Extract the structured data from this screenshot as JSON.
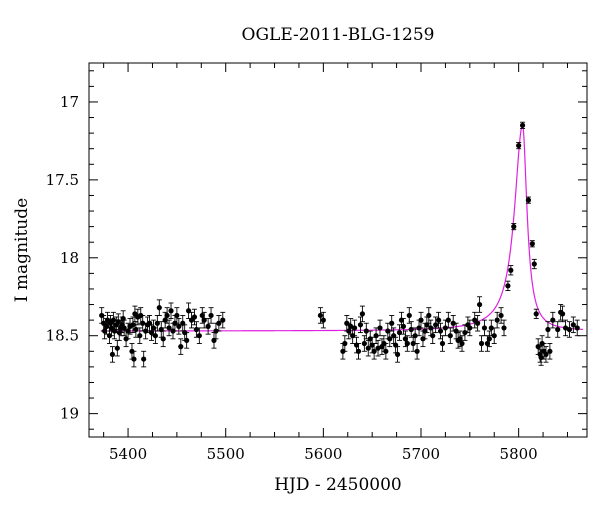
{
  "chart_data": {
    "type": "scatter",
    "title": "OGLE-2011-BLG-1259",
    "xlabel": "HJD - 2450000",
    "ylabel": "I magnitude",
    "xlim": [
      5360,
      5870
    ],
    "ylim": [
      19.15,
      16.75
    ],
    "y_inverted": true,
    "grid": false,
    "x_ticks": [
      5400,
      5500,
      5600,
      5700,
      5800
    ],
    "y_ticks": [
      17,
      17.5,
      18,
      18.5,
      19
    ],
    "y_tick_labels": [
      "17",
      "17.5",
      "18",
      "18.5",
      "19"
    ],
    "colors": {
      "points": "#000000",
      "model": "#e020e0"
    },
    "series": [
      {
        "kind": "points-with-errorbars",
        "points": [
          [
            5373,
            18.37,
            0.05
          ],
          [
            5375,
            18.42,
            0.05
          ],
          [
            5376,
            18.47,
            0.05
          ],
          [
            5378,
            18.44,
            0.05
          ],
          [
            5379,
            18.4,
            0.05
          ],
          [
            5381,
            18.5,
            0.05
          ],
          [
            5382,
            18.42,
            0.05
          ],
          [
            5383,
            18.45,
            0.05
          ],
          [
            5384,
            18.62,
            0.05
          ],
          [
            5385,
            18.4,
            0.05
          ],
          [
            5386,
            18.47,
            0.05
          ],
          [
            5388,
            18.43,
            0.05
          ],
          [
            5389,
            18.58,
            0.05
          ],
          [
            5390,
            18.41,
            0.05
          ],
          [
            5391,
            18.48,
            0.05
          ],
          [
            5393,
            18.45,
            0.05
          ],
          [
            5394,
            18.43,
            0.05
          ],
          [
            5395,
            18.39,
            0.05
          ],
          [
            5396,
            18.45,
            0.05
          ],
          [
            5398,
            18.52,
            0.05
          ],
          [
            5400,
            18.47,
            0.05
          ],
          [
            5402,
            18.44,
            0.05
          ],
          [
            5404,
            18.6,
            0.05
          ],
          [
            5405,
            18.43,
            0.05
          ],
          [
            5406,
            18.65,
            0.05
          ],
          [
            5407,
            18.36,
            0.05
          ],
          [
            5408,
            18.46,
            0.05
          ],
          [
            5410,
            18.38,
            0.05
          ],
          [
            5412,
            18.5,
            0.05
          ],
          [
            5413,
            18.37,
            0.05
          ],
          [
            5415,
            18.42,
            0.05
          ],
          [
            5416,
            18.65,
            0.05
          ],
          [
            5418,
            18.47,
            0.05
          ],
          [
            5420,
            18.43,
            0.05
          ],
          [
            5422,
            18.42,
            0.05
          ],
          [
            5424,
            18.48,
            0.05
          ],
          [
            5426,
            18.45,
            0.05
          ],
          [
            5428,
            18.5,
            0.05
          ],
          [
            5430,
            18.42,
            0.05
          ],
          [
            5432,
            18.32,
            0.05
          ],
          [
            5434,
            18.46,
            0.05
          ],
          [
            5436,
            18.52,
            0.05
          ],
          [
            5438,
            18.4,
            0.05
          ],
          [
            5440,
            18.37,
            0.05
          ],
          [
            5442,
            18.45,
            0.05
          ],
          [
            5444,
            18.34,
            0.05
          ],
          [
            5446,
            18.47,
            0.05
          ],
          [
            5448,
            18.42,
            0.05
          ],
          [
            5450,
            18.37,
            0.05
          ],
          [
            5452,
            18.44,
            0.05
          ],
          [
            5454,
            18.57,
            0.05
          ],
          [
            5456,
            18.42,
            0.05
          ],
          [
            5458,
            18.48,
            0.05
          ],
          [
            5460,
            18.53,
            0.05
          ],
          [
            5462,
            18.34,
            0.05
          ],
          [
            5465,
            18.4,
            0.05
          ],
          [
            5468,
            18.38,
            0.05
          ],
          [
            5470,
            18.46,
            0.05
          ],
          [
            5473,
            18.5,
            0.05
          ],
          [
            5476,
            18.37,
            0.05
          ],
          [
            5478,
            18.4,
            0.05
          ],
          [
            5482,
            18.44,
            0.05
          ],
          [
            5485,
            18.37,
            0.05
          ],
          [
            5488,
            18.53,
            0.05
          ],
          [
            5490,
            18.47,
            0.05
          ],
          [
            5493,
            18.42,
            0.05
          ],
          [
            5497,
            18.4,
            0.05
          ],
          [
            5597,
            18.37,
            0.05
          ],
          [
            5600,
            18.4,
            0.05
          ],
          [
            5620,
            18.6,
            0.05
          ],
          [
            5622,
            18.55,
            0.05
          ],
          [
            5624,
            18.42,
            0.05
          ],
          [
            5626,
            18.47,
            0.05
          ],
          [
            5628,
            18.44,
            0.05
          ],
          [
            5630,
            18.5,
            0.05
          ],
          [
            5632,
            18.45,
            0.05
          ],
          [
            5634,
            18.56,
            0.05
          ],
          [
            5636,
            18.6,
            0.05
          ],
          [
            5638,
            18.43,
            0.05
          ],
          [
            5640,
            18.36,
            0.05
          ],
          [
            5642,
            18.55,
            0.05
          ],
          [
            5644,
            18.47,
            0.05
          ],
          [
            5646,
            18.58,
            0.05
          ],
          [
            5648,
            18.52,
            0.05
          ],
          [
            5650,
            18.56,
            0.05
          ],
          [
            5652,
            18.6,
            0.05
          ],
          [
            5654,
            18.5,
            0.05
          ],
          [
            5656,
            18.58,
            0.05
          ],
          [
            5658,
            18.45,
            0.05
          ],
          [
            5660,
            18.57,
            0.05
          ],
          [
            5662,
            18.55,
            0.05
          ],
          [
            5664,
            18.6,
            0.05
          ],
          [
            5666,
            18.47,
            0.05
          ],
          [
            5668,
            18.52,
            0.05
          ],
          [
            5670,
            18.42,
            0.05
          ],
          [
            5672,
            18.5,
            0.05
          ],
          [
            5674,
            18.56,
            0.05
          ],
          [
            5676,
            18.62,
            0.05
          ],
          [
            5678,
            18.48,
            0.05
          ],
          [
            5680,
            18.4,
            0.05
          ],
          [
            5682,
            18.44,
            0.05
          ],
          [
            5684,
            18.52,
            0.05
          ],
          [
            5686,
            18.55,
            0.05
          ],
          [
            5688,
            18.37,
            0.05
          ],
          [
            5690,
            18.46,
            0.05
          ],
          [
            5692,
            18.55,
            0.05
          ],
          [
            5694,
            18.5,
            0.05
          ],
          [
            5696,
            18.6,
            0.05
          ],
          [
            5698,
            18.45,
            0.05
          ],
          [
            5700,
            18.4,
            0.05
          ],
          [
            5702,
            18.52,
            0.05
          ],
          [
            5704,
            18.47,
            0.05
          ],
          [
            5706,
            18.43,
            0.05
          ],
          [
            5708,
            18.37,
            0.05
          ],
          [
            5710,
            18.45,
            0.05
          ],
          [
            5712,
            18.5,
            0.05
          ],
          [
            5715,
            18.43,
            0.05
          ],
          [
            5718,
            18.4,
            0.05
          ],
          [
            5720,
            18.47,
            0.05
          ],
          [
            5722,
            18.55,
            0.05
          ],
          [
            5725,
            18.45,
            0.05
          ],
          [
            5728,
            18.4,
            0.05
          ],
          [
            5730,
            18.5,
            0.05
          ],
          [
            5733,
            18.42,
            0.05
          ],
          [
            5736,
            18.47,
            0.05
          ],
          [
            5738,
            18.53,
            0.05
          ],
          [
            5740,
            18.52,
            0.05
          ],
          [
            5742,
            18.55,
            0.05
          ],
          [
            5745,
            18.48,
            0.05
          ],
          [
            5748,
            18.43,
            0.05
          ],
          [
            5750,
            18.45,
            0.05
          ],
          [
            5755,
            18.4,
            0.05
          ],
          [
            5758,
            18.42,
            0.05
          ],
          [
            5760,
            18.3,
            0.05
          ],
          [
            5762,
            18.55,
            0.05
          ],
          [
            5765,
            18.45,
            0.05
          ],
          [
            5768,
            18.55,
            0.05
          ],
          [
            5770,
            18.52,
            0.05
          ],
          [
            5772,
            18.45,
            0.05
          ],
          [
            5775,
            18.5,
            0.05
          ],
          [
            5778,
            18.4,
            0.05
          ],
          [
            5782,
            18.37,
            0.05
          ],
          [
            5785,
            18.45,
            0.05
          ],
          [
            5789,
            18.18,
            0.03
          ],
          [
            5792,
            18.08,
            0.03
          ],
          [
            5795,
            17.8,
            0.02
          ],
          [
            5800,
            17.28,
            0.02
          ],
          [
            5804,
            17.15,
            0.02
          ],
          [
            5810,
            17.63,
            0.02
          ],
          [
            5814,
            17.91,
            0.02
          ],
          [
            5816,
            18.04,
            0.03
          ],
          [
            5818,
            18.36,
            0.03
          ],
          [
            5820,
            18.57,
            0.05
          ],
          [
            5822,
            18.62,
            0.05
          ],
          [
            5823,
            18.64,
            0.05
          ],
          [
            5824,
            18.55,
            0.05
          ],
          [
            5826,
            18.6,
            0.05
          ],
          [
            5828,
            18.62,
            0.05
          ],
          [
            5830,
            18.46,
            0.05
          ],
          [
            5832,
            18.6,
            0.05
          ],
          [
            5835,
            18.4,
            0.05
          ],
          [
            5840,
            18.46,
            0.05
          ],
          [
            5843,
            18.35,
            0.05
          ],
          [
            5845,
            18.36,
            0.05
          ],
          [
            5848,
            18.45,
            0.05
          ],
          [
            5852,
            18.46,
            0.05
          ],
          [
            5856,
            18.43,
            0.05
          ],
          [
            5860,
            18.45,
            0.05
          ]
        ]
      },
      {
        "kind": "model-curve",
        "baseline": 18.47,
        "peak_t": 5804,
        "peak_mag": 17.15,
        "rise_width": 10,
        "decay_width": 5.5
      }
    ]
  }
}
